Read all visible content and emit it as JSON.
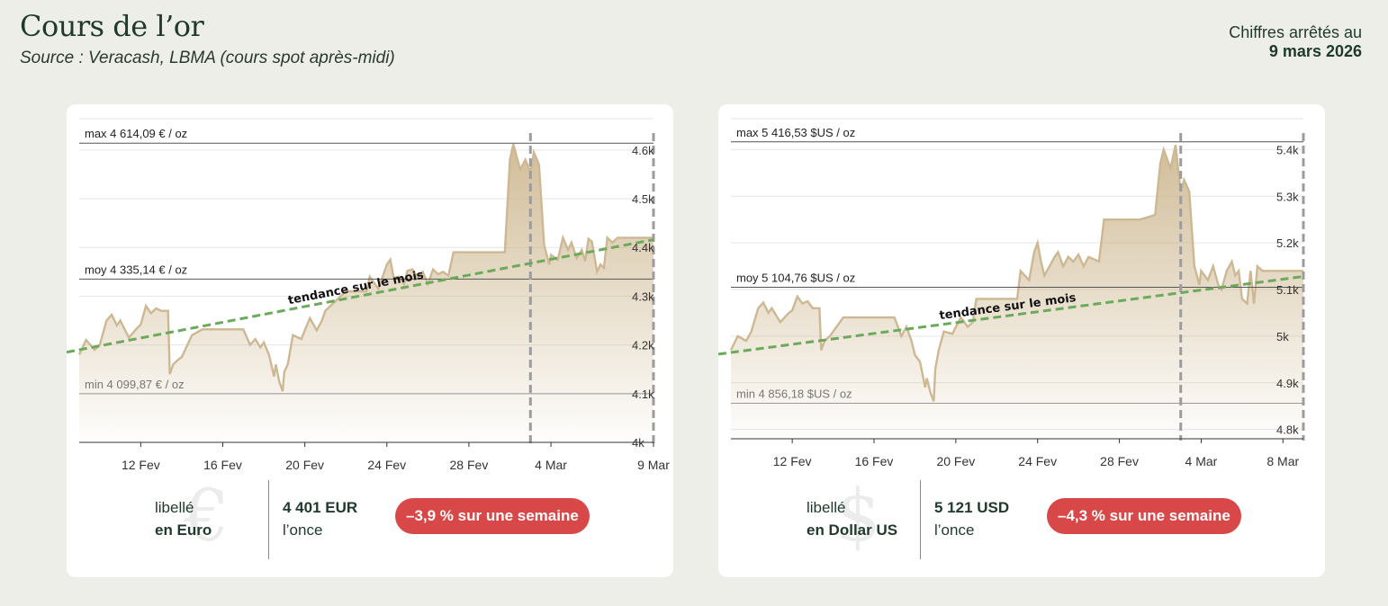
{
  "header": {
    "title": "Cours de l’or",
    "source": "Source : Veracash, LBMA (cours spot après-midi)",
    "asof_label": "Chiffres arrêtés au",
    "asof_date": "9 mars 2026"
  },
  "colors": {
    "line": "#cdb893",
    "trend": "#6aaa5a",
    "badge": "#d94848",
    "text": "#1f3a2b"
  },
  "cards": [
    {
      "currency_icon": "€",
      "libelle_line1": "libellé",
      "libelle_line2": "en Euro",
      "price_value": "4 401 EUR",
      "price_unit": "l’once",
      "change_badge": "–3,9 % sur une semaine",
      "icon_name": "euro-icon"
    },
    {
      "currency_icon": "$",
      "libelle_line1": "libellé",
      "libelle_line2": "en Dollar US",
      "price_value": "5 121 USD",
      "price_unit": "l’once",
      "change_badge": "–4,3 % sur une semaine",
      "icon_name": "dollar-icon"
    }
  ],
  "chart_data": [
    {
      "type": "area",
      "title": "",
      "currency": "EUR",
      "x_start": "2026-02-09",
      "x_end": "2026-03-09",
      "ylim": [
        4000,
        4620
      ],
      "yticks": [
        4000,
        4100,
        4200,
        4300,
        4400,
        4500,
        4600
      ],
      "ytick_labels": [
        "4k",
        "4.1k",
        "4.2k",
        "4.3k",
        "4.4k",
        "4.5k",
        "4.6k"
      ],
      "xticks": [
        "2026-02-12",
        "2026-02-16",
        "2026-02-20",
        "2026-02-24",
        "2026-02-28",
        "2026-03-04",
        "2026-03-09"
      ],
      "xtick_labels": [
        "12 Fev",
        "16 Fev",
        "20 Fev",
        "24 Fev",
        "28 Fev",
        "4 Mar",
        "9 Mar"
      ],
      "grid": true,
      "ref_lines": [
        {
          "label": "max 4 614,09 € / oz",
          "value": 4614.09
        },
        {
          "label": "moy 4 335,14 € / oz",
          "value": 4335.14
        },
        {
          "label": "min 4 099,87 € / oz",
          "value": 4099.87
        }
      ],
      "markers": [
        "2026-03-03",
        "2026-03-09"
      ],
      "trend": {
        "label": "tendance sur le mois",
        "start": [
          "2026-02-09",
          4190
        ],
        "end": [
          "2026-03-09",
          4416
        ]
      },
      "series": [
        {
          "name": "",
          "points": [
            [
              "2026-02-09",
              4180
            ],
            [
              "2026-02-09T08",
              4210
            ],
            [
              "2026-02-09T18",
              4190
            ],
            [
              "2026-02-10",
              4200
            ],
            [
              "2026-02-10T08",
              4250
            ],
            [
              "2026-02-10T14",
              4262
            ],
            [
              "2026-02-10T20",
              4240
            ],
            [
              "2026-02-11",
              4250
            ],
            [
              "2026-02-11T10",
              4215
            ],
            [
              "2026-02-11T20",
              4235
            ],
            [
              "2026-02-12",
              4242
            ],
            [
              "2026-02-12T06",
              4280
            ],
            [
              "2026-02-12T12",
              4265
            ],
            [
              "2026-02-12T18",
              4275
            ],
            [
              "2026-02-13",
              4270
            ],
            [
              "2026-02-13T08",
              4270
            ],
            [
              "2026-02-13T10",
              4140
            ],
            [
              "2026-02-13T14",
              4160
            ],
            [
              "2026-02-13T20",
              4170
            ],
            [
              "2026-02-14",
              4175
            ],
            [
              "2026-02-14T12",
              4220
            ],
            [
              "2026-02-15",
              4232
            ],
            [
              "2026-02-16",
              4232
            ],
            [
              "2026-02-17",
              4232
            ],
            [
              "2026-02-17T08",
              4200
            ],
            [
              "2026-02-17T14",
              4212
            ],
            [
              "2026-02-17T20",
              4195
            ],
            [
              "2026-02-18",
              4205
            ],
            [
              "2026-02-18T06",
              4180
            ],
            [
              "2026-02-18T12",
              4135
            ],
            [
              "2026-02-18T14",
              4160
            ],
            [
              "2026-02-18T18",
              4125
            ],
            [
              "2026-02-18T22",
              4105
            ],
            [
              "2026-02-19",
              4145
            ],
            [
              "2026-02-19T04",
              4160
            ],
            [
              "2026-02-19T10",
              4220
            ],
            [
              "2026-02-19T20",
              4212
            ],
            [
              "2026-02-20",
              4230
            ],
            [
              "2026-02-20T06",
              4255
            ],
            [
              "2026-02-20T14",
              4230
            ],
            [
              "2026-02-20T20",
              4250
            ],
            [
              "2026-02-21",
              4270
            ],
            [
              "2026-02-22",
              4310
            ],
            [
              "2026-02-23",
              4310
            ],
            [
              "2026-02-23T04",
              4340
            ],
            [
              "2026-02-23T14",
              4315
            ],
            [
              "2026-02-23T20",
              4345
            ],
            [
              "2026-02-24",
              4365
            ],
            [
              "2026-02-24T04",
              4375
            ],
            [
              "2026-02-24T08",
              4338
            ],
            [
              "2026-02-24T14",
              4340
            ],
            [
              "2026-02-24T20",
              4325
            ],
            [
              "2026-02-25",
              4352
            ],
            [
              "2026-02-25T06",
              4355
            ],
            [
              "2026-02-25T12",
              4338
            ],
            [
              "2026-02-25T18",
              4350
            ],
            [
              "2026-02-26",
              4325
            ],
            [
              "2026-02-26T06",
              4355
            ],
            [
              "2026-02-26T12",
              4345
            ],
            [
              "2026-02-26T18",
              4350
            ],
            [
              "2026-02-27",
              4342
            ],
            [
              "2026-02-27T06",
              4390
            ],
            [
              "2026-02-27T12",
              4390
            ],
            [
              "2026-02-28",
              4390
            ],
            [
              "2026-03-01",
              4390
            ],
            [
              "2026-03-01T18",
              4390
            ],
            [
              "2026-03-02",
              4580
            ],
            [
              "2026-03-02T04",
              4612
            ],
            [
              "2026-03-02T12",
              4560
            ],
            [
              "2026-03-02T18",
              4580
            ],
            [
              "2026-03-03",
              4555
            ],
            [
              "2026-03-03T04",
              4595
            ],
            [
              "2026-03-03T10",
              4570
            ],
            [
              "2026-03-03T16",
              4405
            ],
            [
              "2026-03-03T22",
              4365
            ],
            [
              "2026-03-04",
              4385
            ],
            [
              "2026-03-04T08",
              4375
            ],
            [
              "2026-03-04T14",
              4420
            ],
            [
              "2026-03-04T20",
              4395
            ],
            [
              "2026-03-05",
              4410
            ],
            [
              "2026-03-05T06",
              4378
            ],
            [
              "2026-03-05T12",
              4395
            ],
            [
              "2026-03-05T16",
              4372
            ],
            [
              "2026-03-05T20",
              4418
            ],
            [
              "2026-03-06",
              4412
            ],
            [
              "2026-03-06T06",
              4350
            ],
            [
              "2026-03-06T10",
              4365
            ],
            [
              "2026-03-06T14",
              4358
            ],
            [
              "2026-03-06T18",
              4420
            ],
            [
              "2026-03-07",
              4410
            ],
            [
              "2026-03-07T06",
              4420
            ],
            [
              "2026-03-08",
              4420
            ],
            [
              "2026-03-09",
              4420
            ]
          ]
        }
      ]
    },
    {
      "type": "area",
      "title": "",
      "currency": "USD",
      "x_start": "2026-02-09",
      "x_end": "2026-03-09",
      "ylim": [
        4780,
        5420
      ],
      "yticks": [
        4800,
        4900,
        5000,
        5100,
        5200,
        5300,
        5400
      ],
      "ytick_labels": [
        "4.8k",
        "4.9k",
        "5k",
        "5.1k",
        "5.2k",
        "5.3k",
        "5.4k"
      ],
      "xticks": [
        "2026-02-12",
        "2026-02-16",
        "2026-02-20",
        "2026-02-24",
        "2026-02-28",
        "2026-03-04",
        "2026-03-08"
      ],
      "xtick_labels": [
        "12 Fev",
        "16 Fev",
        "20 Fev",
        "24 Fev",
        "28 Fev",
        "4 Mar",
        "8 Mar"
      ],
      "grid": true,
      "ref_lines": [
        {
          "label": "max 5 416,53 $US / oz",
          "value": 5416.53
        },
        {
          "label": "moy 5 104,76 $US / oz",
          "value": 5104.76
        },
        {
          "label": "min 4 856,18 $US / oz",
          "value": 4856.18
        }
      ],
      "markers": [
        "2026-03-03",
        "2026-03-09"
      ],
      "trend": {
        "label": "tendance sur le mois",
        "start": [
          "2026-02-09",
          4965
        ],
        "end": [
          "2026-03-09",
          5128
        ]
      },
      "series": [
        {
          "name": "",
          "points": [
            [
              "2026-02-09",
              4970
            ],
            [
              "2026-02-09T08",
              5000
            ],
            [
              "2026-02-09T18",
              4990
            ],
            [
              "2026-02-10",
              5010
            ],
            [
              "2026-02-10T08",
              5060
            ],
            [
              "2026-02-10T14",
              5072
            ],
            [
              "2026-02-10T20",
              5050
            ],
            [
              "2026-02-11",
              5060
            ],
            [
              "2026-02-11T10",
              5030
            ],
            [
              "2026-02-11T20",
              5050
            ],
            [
              "2026-02-12",
              5055
            ],
            [
              "2026-02-12T06",
              5085
            ],
            [
              "2026-02-12T12",
              5070
            ],
            [
              "2026-02-12T18",
              5075
            ],
            [
              "2026-02-13",
              5060
            ],
            [
              "2026-02-13T08",
              5060
            ],
            [
              "2026-02-13T10",
              4970
            ],
            [
              "2026-02-13T14",
              4990
            ],
            [
              "2026-02-13T20",
              5000
            ],
            [
              "2026-02-14",
              5010
            ],
            [
              "2026-02-14T12",
              5040
            ],
            [
              "2026-02-15",
              5040
            ],
            [
              "2026-02-16",
              5040
            ],
            [
              "2026-02-17",
              5040
            ],
            [
              "2026-02-17T08",
              5000
            ],
            [
              "2026-02-17T14",
              5020
            ],
            [
              "2026-02-17T20",
              4990
            ],
            [
              "2026-02-18",
              4960
            ],
            [
              "2026-02-18T06",
              4945
            ],
            [
              "2026-02-18T12",
              4890
            ],
            [
              "2026-02-18T14",
              4910
            ],
            [
              "2026-02-18T18",
              4880
            ],
            [
              "2026-02-18T22",
              4860
            ],
            [
              "2026-02-19",
              4930
            ],
            [
              "2026-02-19T04",
              4970
            ],
            [
              "2026-02-19T10",
              5010
            ],
            [
              "2026-02-19T20",
              5005
            ],
            [
              "2026-02-20",
              5020
            ],
            [
              "2026-02-20T06",
              5040
            ],
            [
              "2026-02-20T14",
              5020
            ],
            [
              "2026-02-20T20",
              5030
            ],
            [
              "2026-02-21",
              5080
            ],
            [
              "2026-02-22",
              5080
            ],
            [
              "2026-02-23",
              5080
            ],
            [
              "2026-02-23T04",
              5140
            ],
            [
              "2026-02-23T14",
              5120
            ],
            [
              "2026-02-23T20",
              5180
            ],
            [
              "2026-02-24",
              5200
            ],
            [
              "2026-02-24T04",
              5160
            ],
            [
              "2026-02-24T08",
              5130
            ],
            [
              "2026-02-24T14",
              5150
            ],
            [
              "2026-02-24T20",
              5170
            ],
            [
              "2026-02-25",
              5180
            ],
            [
              "2026-02-25T06",
              5150
            ],
            [
              "2026-02-25T12",
              5170
            ],
            [
              "2026-02-25T18",
              5160
            ],
            [
              "2026-02-26",
              5175
            ],
            [
              "2026-02-26T06",
              5150
            ],
            [
              "2026-02-26T12",
              5170
            ],
            [
              "2026-02-26T18",
              5165
            ],
            [
              "2026-02-27",
              5160
            ],
            [
              "2026-02-27T06",
              5250
            ],
            [
              "2026-02-27T12",
              5250
            ],
            [
              "2026-02-28",
              5250
            ],
            [
              "2026-03-01",
              5250
            ],
            [
              "2026-03-01T18",
              5260
            ],
            [
              "2026-03-02",
              5370
            ],
            [
              "2026-03-02T04",
              5400
            ],
            [
              "2026-03-02T12",
              5360
            ],
            [
              "2026-03-02T18",
              5410
            ],
            [
              "2026-03-03",
              5310
            ],
            [
              "2026-03-03T04",
              5335
            ],
            [
              "2026-03-03T10",
              5310
            ],
            [
              "2026-03-03T16",
              5150
            ],
            [
              "2026-03-03T22",
              5110
            ],
            [
              "2026-03-04",
              5140
            ],
            [
              "2026-03-04T08",
              5120
            ],
            [
              "2026-03-04T14",
              5150
            ],
            [
              "2026-03-04T20",
              5110
            ],
            [
              "2026-03-05",
              5100
            ],
            [
              "2026-03-05T06",
              5140
            ],
            [
              "2026-03-05T12",
              5160
            ],
            [
              "2026-03-05T16",
              5130
            ],
            [
              "2026-03-05T20",
              5140
            ],
            [
              "2026-03-06",
              5080
            ],
            [
              "2026-03-06T06",
              5070
            ],
            [
              "2026-03-06T10",
              5140
            ],
            [
              "2026-03-06T14",
              5070
            ],
            [
              "2026-03-06T18",
              5150
            ],
            [
              "2026-03-07",
              5140
            ],
            [
              "2026-03-07T06",
              5140
            ],
            [
              "2026-03-08",
              5140
            ],
            [
              "2026-03-09",
              5140
            ]
          ]
        }
      ]
    }
  ]
}
